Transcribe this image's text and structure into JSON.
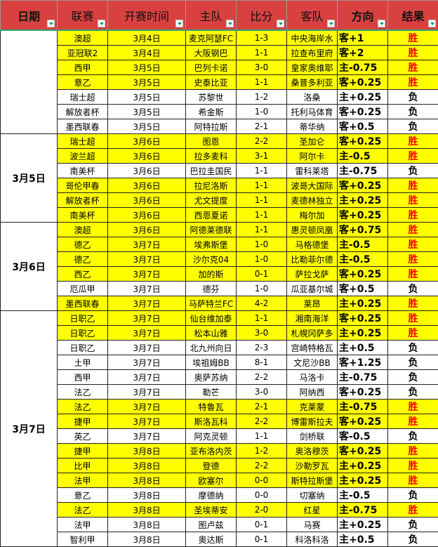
{
  "headers": [
    "日期",
    "联赛",
    "开赛时间",
    "主队",
    "比分",
    "客队",
    "方向",
    "结果"
  ],
  "colors": {
    "header": "#d94141",
    "win_row": "#ffff00",
    "win_text": "#ff0000"
  },
  "groups": [
    {
      "date": "",
      "rows": [
        [
          "澳超",
          "3月4日",
          "麦克阿瑟FC",
          "1-3",
          "中央海岸水",
          "客+1",
          "胜"
        ],
        [
          "亚冠联2",
          "3月4日",
          "大阪钢巴",
          "1-1",
          "拉查布里府",
          "客+2",
          "胜"
        ],
        [
          "西甲",
          "3月5日",
          "巴列卡诺",
          "3-0",
          "皇家奥维耶",
          "主-0.75",
          "胜"
        ],
        [
          "意乙",
          "3月5日",
          "史泰比亚",
          "1-1",
          "桑普多利亚",
          "客+0.25",
          "胜"
        ],
        [
          "瑞士超",
          "3月5日",
          "苏黎世",
          "1-2",
          "洛桑",
          "主+0.25",
          "负"
        ],
        [
          "解放者杯",
          "3月5日",
          "希金斯",
          "1-0",
          "托利马体育",
          "客+0.25",
          "负"
        ],
        [
          "墨西联春",
          "3月5日",
          "阿特拉斯",
          "2-1",
          "蒂华纳",
          "客+0.5",
          "负"
        ]
      ]
    },
    {
      "date": "3月5日",
      "rows": [
        [
          "瑞士超",
          "3月6日",
          "图恩",
          "2-2",
          "圣加仑",
          "客+0.25",
          "胜"
        ],
        [
          "波兰超",
          "3月6日",
          "拉多麦科",
          "3-1",
          "阿尔卡",
          "主-0.5",
          "胜"
        ],
        [
          "南美杯",
          "3月6日",
          "巴拉圭国民",
          "1-1",
          "雷科莱塔",
          "主-0.75",
          "负"
        ],
        [
          "哥伦甲春",
          "3月6日",
          "拉尼洛斯",
          "1-1",
          "波哥大国际",
          "客+0.25",
          "胜"
        ],
        [
          "解放者杯",
          "3月6日",
          "尤文提度",
          "1-1",
          "麦德林独立",
          "主+0.25",
          "胜"
        ],
        [
          "南美杯",
          "3月6日",
          "西恩夏诺",
          "1-1",
          "梅尔加",
          "客+0.25",
          "胜"
        ]
      ]
    },
    {
      "date": "3月6日",
      "rows": [
        [
          "澳超",
          "3月6日",
          "阿德莱德联",
          "1-1",
          "惠灵顿凤凰",
          "客+0.75",
          "胜"
        ],
        [
          "德乙",
          "3月7日",
          "埃弗斯堡",
          "1-0",
          "马格德堡",
          "主-0.5",
          "胜"
        ],
        [
          "德乙",
          "3月7日",
          "沙尔克04",
          "1-0",
          "比勒菲尔德",
          "主-0.5",
          "胜"
        ],
        [
          "西乙",
          "3月7日",
          "加的斯",
          "0-1",
          "萨拉戈萨",
          "客+0.25",
          "胜"
        ],
        [
          "厄瓜甲",
          "3月7日",
          "德芬",
          "1-0",
          "瓜亚基尔城",
          "客+0.5",
          "负"
        ],
        [
          "墨西联春",
          "3月7日",
          "马萨特兰FC",
          "4-2",
          "莱昂",
          "主+0.25",
          "胜"
        ]
      ]
    },
    {
      "date": "3月7日",
      "rows": [
        [
          "日职乙",
          "3月7日",
          "仙台维加泰",
          "1-1",
          "湘南海洋",
          "客+0.25",
          "胜"
        ],
        [
          "日职乙",
          "3月7日",
          "松本山雅",
          "3-0",
          "札幌冈萨多",
          "主+0.25",
          "胜"
        ],
        [
          "日职乙",
          "3月7日",
          "北九州向日",
          "2-3",
          "宫崎特格瓦",
          "主+0.5",
          "负"
        ],
        [
          "土甲",
          "3月7日",
          "埃祖姆BB",
          "8-1",
          "文尼沙BB",
          "客+1.25",
          "负"
        ],
        [
          "西甲",
          "3月7日",
          "奥萨苏纳",
          "2-2",
          "马洛卡",
          "主-0.75",
          "负"
        ],
        [
          "法乙",
          "3月7日",
          "勒芒",
          "3-0",
          "阿纳西",
          "客+0.25",
          "负"
        ],
        [
          "法乙",
          "3月7日",
          "特鲁瓦",
          "2-1",
          "克莱蒙",
          "主-0.75",
          "胜"
        ],
        [
          "捷甲",
          "3月7日",
          "斯洛瓦科",
          "2-2",
          "博雷斯拉夫",
          "客+0.25",
          "胜"
        ],
        [
          "英乙",
          "3月7日",
          "阿克灵顿",
          "1-1",
          "剑桥联",
          "客-0.5",
          "负"
        ],
        [
          "捷甲",
          "3月8日",
          "亚布洛内茨",
          "1-2",
          "奥洛穆茨",
          "客+0.25",
          "胜"
        ],
        [
          "比甲",
          "3月8日",
          "登德",
          "2-2",
          "沙勒罗瓦",
          "主+0.25",
          "胜"
        ],
        [
          "法甲",
          "3月8日",
          "欧塞尔",
          "0-0",
          "斯特拉斯堡",
          "主+0.25",
          "胜"
        ],
        [
          "意乙",
          "3月8日",
          "摩德纳",
          "0-0",
          "切塞纳",
          "主-0.5",
          "负"
        ],
        [
          "法乙",
          "3月8日",
          "圣埃蒂安",
          "2-0",
          "红星",
          "主-0.75",
          "胜"
        ],
        [
          "法甲",
          "3月8日",
          "图卢兹",
          "0-1",
          "马赛",
          "主+0.25",
          "负"
        ],
        [
          "智利甲",
          "3月8日",
          "奥达斯",
          "0-1",
          "科洛科洛",
          "主+0.5",
          "负"
        ]
      ]
    }
  ]
}
